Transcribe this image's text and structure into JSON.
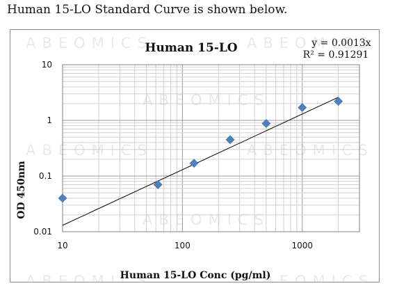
{
  "caption": "Human 15-LO Standard Curve is shown below.",
  "watermark": "ABEOMICS",
  "chart_data": {
    "type": "scatter",
    "title": "Human 15-LO",
    "xlabel": "Human 15-LO Conc (pg/ml)",
    "ylabel": "OD 450nm",
    "x_scale": "log",
    "y_scale": "log",
    "xlim": [
      10,
      3000
    ],
    "ylim": [
      0.01,
      10
    ],
    "x_ticks": [
      10,
      100,
      1000
    ],
    "y_ticks": [
      0.01,
      0.1,
      1,
      10
    ],
    "grid": true,
    "marker": "diamond",
    "marker_color": "#4f81bd",
    "series": [
      {
        "x": [
          10,
          62.5,
          125,
          250,
          500,
          1000,
          2000
        ],
        "y": [
          0.04,
          0.07,
          0.17,
          0.45,
          0.88,
          1.7,
          2.2
        ]
      }
    ],
    "trendline": {
      "slope": 0.0013,
      "x_range": [
        10,
        2000
      ],
      "equation": "y = 0.0013x",
      "r_squared_label": "R² = 0.91291"
    }
  }
}
